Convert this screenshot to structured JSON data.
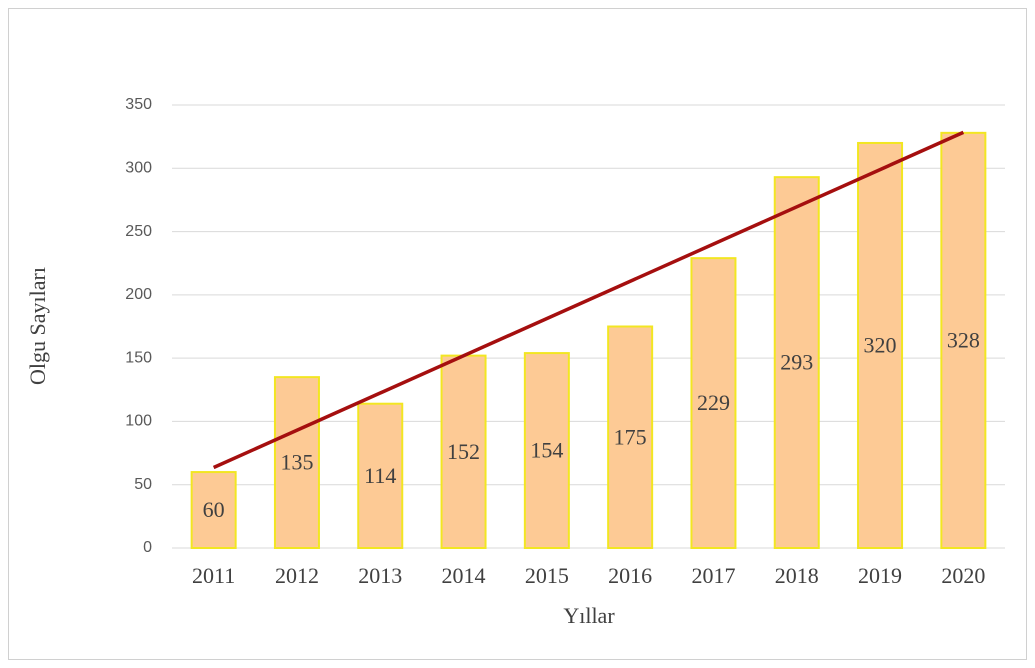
{
  "chart_data": {
    "type": "bar",
    "categories": [
      "2011",
      "2012",
      "2013",
      "2014",
      "2015",
      "2016",
      "2017",
      "2018",
      "2019",
      "2020"
    ],
    "values": [
      60,
      135,
      114,
      152,
      154,
      175,
      229,
      293,
      320,
      328
    ],
    "color": "#fdca95",
    "edge_color": "#f2e622",
    "x_label": "Yıllar",
    "y_label": "Olgu Sayıları",
    "ylim": [
      0,
      350
    ],
    "yticks": [
      0,
      50,
      100,
      150,
      200,
      250,
      300,
      350
    ],
    "grid": true,
    "trendline": true,
    "trendline_color": "#a50f0f"
  }
}
